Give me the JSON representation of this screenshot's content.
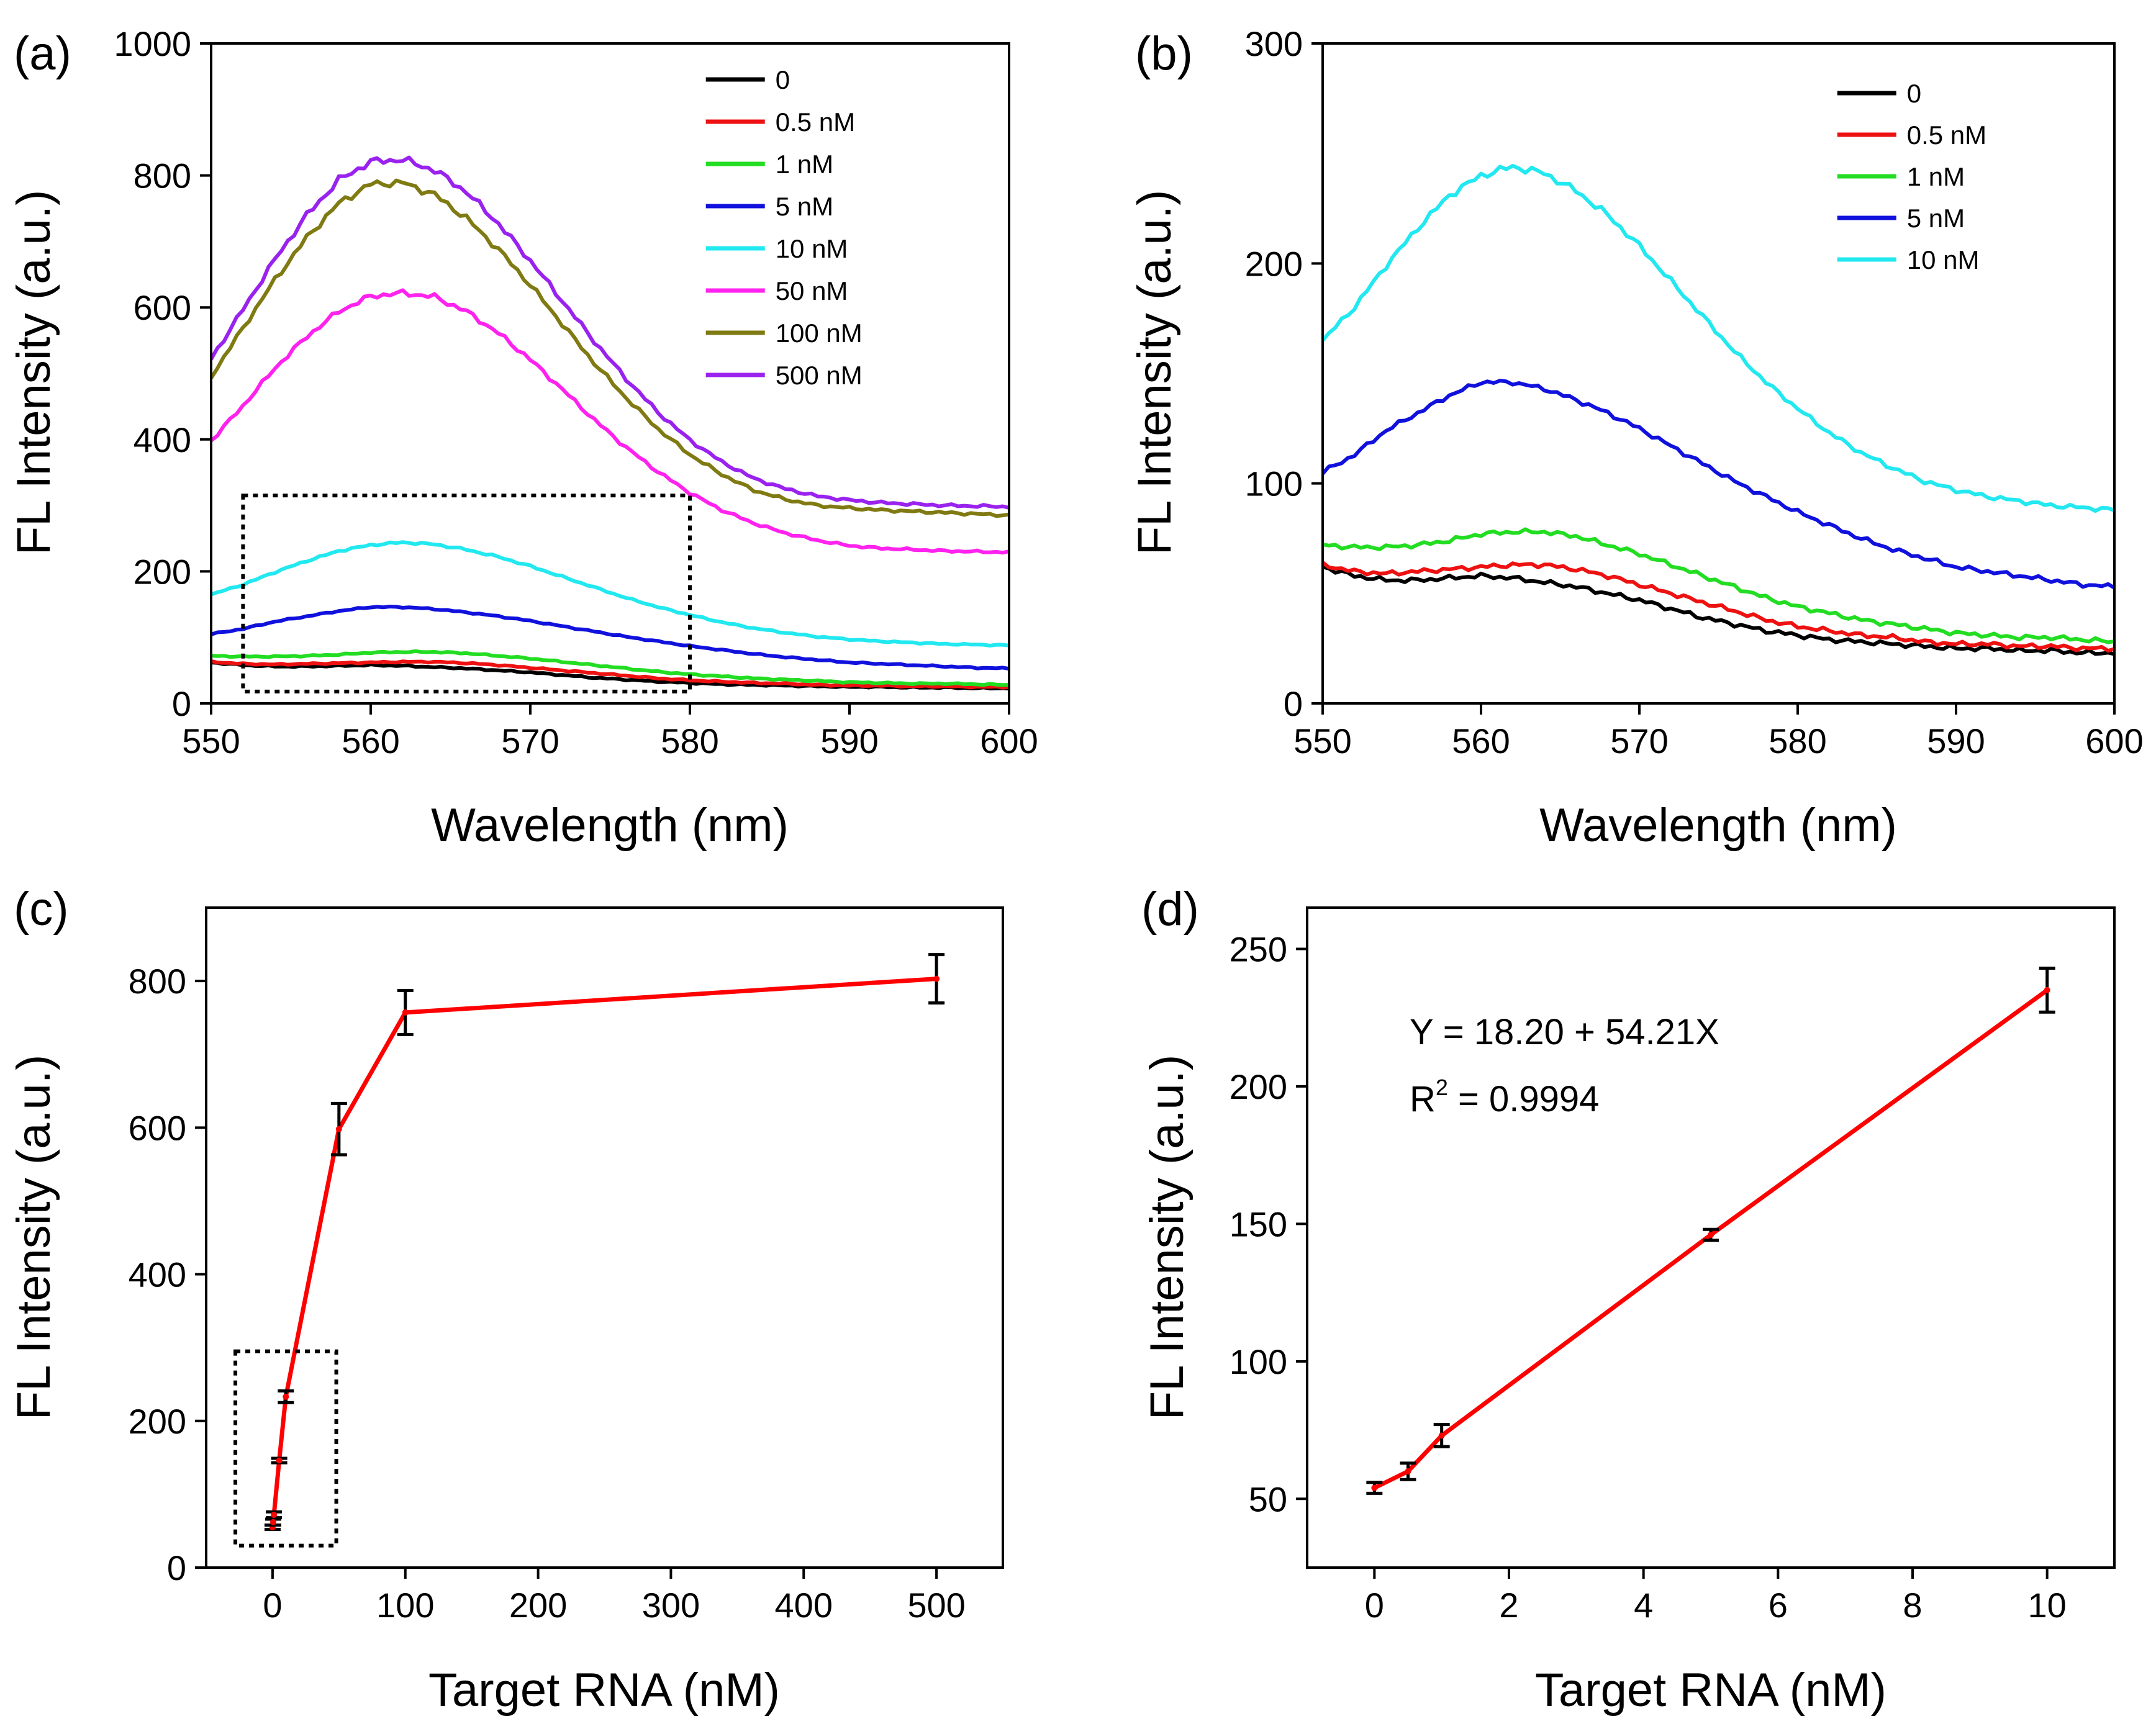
{
  "colors": {
    "0": "#000000",
    "0.5 nM": "#ee1111",
    "1 nM": "#22dd22",
    "5 nM": "#1111dd",
    "10 nM": "#22e8f0",
    "50 nM": "#ff22ee",
    "100 nM": "#7f7a12",
    "500 nM": "#9a22ee",
    "fit_line": "#ff0000"
  },
  "chart_data": [
    {
      "id": "a",
      "panel_label": "(a)",
      "type": "line",
      "xlabel": "Wavelength (nm)",
      "ylabel": "FL Intensity (a.u.)",
      "xlim": [
        550,
        600
      ],
      "ylim": [
        0,
        1000
      ],
      "xticks": [
        550,
        560,
        570,
        580,
        590,
        600
      ],
      "yticks": [
        0,
        200,
        400,
        600,
        800,
        1000
      ],
      "legend_position": "top-right",
      "zoom_box": {
        "x": [
          552,
          580
        ],
        "y": [
          18,
          315
        ]
      },
      "x": [
        550,
        552,
        554,
        556,
        558,
        560,
        562,
        564,
        566,
        568,
        570,
        572,
        574,
        576,
        578,
        580,
        582,
        584,
        586,
        588,
        590,
        592,
        594,
        596,
        598,
        600
      ],
      "series": [
        {
          "name": "0",
          "values": [
            62,
            58,
            56,
            56,
            57,
            58,
            57,
            55,
            53,
            50,
            47,
            43,
            39,
            36,
            33,
            31,
            29,
            28,
            27,
            26,
            25,
            25,
            24,
            24,
            23,
            23
          ]
        },
        {
          "name": "0.5 nM",
          "values": [
            63,
            60,
            59,
            60,
            61,
            62,
            63,
            63,
            61,
            58,
            54,
            50,
            46,
            42,
            38,
            35,
            33,
            31,
            30,
            28,
            27,
            27,
            26,
            26,
            25,
            25
          ]
        },
        {
          "name": "1 nM",
          "values": [
            72,
            71,
            71,
            72,
            74,
            77,
            78,
            78,
            76,
            72,
            68,
            63,
            58,
            53,
            48,
            44,
            41,
            38,
            36,
            34,
            32,
            31,
            30,
            30,
            29,
            28
          ]
        },
        {
          "name": "5 nM",
          "values": [
            105,
            113,
            124,
            132,
            140,
            146,
            146,
            143,
            138,
            132,
            125,
            117,
            109,
            101,
            94,
            87,
            81,
            75,
            70,
            66,
            62,
            60,
            58,
            56,
            54,
            53
          ]
        },
        {
          "name": "10 nM",
          "values": [
            165,
            180,
            199,
            216,
            231,
            240,
            244,
            241,
            233,
            222,
            208,
            192,
            176,
            160,
            146,
            134,
            123,
            114,
            107,
            101,
            97,
            94,
            92,
            90,
            89,
            88
          ]
        },
        {
          "name": "50 nM",
          "values": [
            398,
            451,
            508,
            556,
            594,
            617,
            622,
            616,
            594,
            561,
            521,
            476,
            430,
            388,
            351,
            319,
            293,
            273,
            258,
            247,
            239,
            235,
            233,
            231,
            230,
            229
          ]
        },
        {
          "name": "100 nM",
          "values": [
            495,
            569,
            642,
            706,
            758,
            787,
            789,
            771,
            735,
            688,
            634,
            575,
            516,
            463,
            416,
            377,
            347,
            323,
            309,
            300,
            296,
            293,
            291,
            289,
            287,
            285
          ]
        },
        {
          "name": "500 nM",
          "values": [
            522,
            597,
            673,
            740,
            793,
            821,
            824,
            808,
            775,
            727,
            671,
            610,
            549,
            492,
            441,
            399,
            366,
            341,
            325,
            314,
            308,
            304,
            302,
            300,
            299,
            298
          ]
        }
      ]
    },
    {
      "id": "b",
      "panel_label": "(b)",
      "type": "line",
      "xlabel": "Wavelength (nm)",
      "ylabel": "FL Intensity (a.u.)",
      "xlim": [
        550,
        600
      ],
      "ylim": [
        0,
        300
      ],
      "xticks": [
        550,
        560,
        570,
        580,
        590,
        600
      ],
      "yticks": [
        0,
        100,
        200,
        300
      ],
      "legend_position": "top-right",
      "x": [
        550,
        552,
        554,
        556,
        558,
        560,
        562,
        564,
        566,
        568,
        570,
        572,
        574,
        576,
        578,
        580,
        582,
        584,
        586,
        588,
        590,
        592,
        594,
        596,
        598,
        600
      ],
      "series": [
        {
          "name": "0",
          "values": [
            62,
            58,
            56,
            56,
            57,
            58,
            57,
            55,
            53,
            50,
            47,
            43,
            39,
            36,
            33,
            31,
            29,
            28,
            27,
            26,
            25,
            25,
            24,
            24,
            23,
            23
          ]
        },
        {
          "name": "0.5 nM",
          "values": [
            63,
            60,
            59,
            60,
            61,
            62,
            63,
            63,
            61,
            58,
            54,
            50,
            46,
            42,
            38,
            35,
            33,
            31,
            30,
            28,
            27,
            27,
            26,
            26,
            25,
            25
          ]
        },
        {
          "name": "1 nM",
          "values": [
            72,
            71,
            71,
            72,
            74,
            77,
            78,
            78,
            76,
            72,
            68,
            63,
            58,
            53,
            48,
            44,
            41,
            38,
            36,
            34,
            32,
            31,
            30,
            30,
            29,
            28
          ]
        },
        {
          "name": "5 nM",
          "values": [
            105,
            113,
            124,
            132,
            140,
            146,
            146,
            143,
            138,
            132,
            125,
            117,
            109,
            101,
            94,
            87,
            81,
            75,
            70,
            66,
            62,
            60,
            58,
            56,
            54,
            53
          ]
        },
        {
          "name": "10 nM",
          "values": [
            165,
            180,
            199,
            216,
            231,
            240,
            244,
            241,
            233,
            222,
            208,
            192,
            176,
            160,
            146,
            134,
            123,
            114,
            107,
            101,
            97,
            94,
            92,
            90,
            89,
            88
          ]
        }
      ]
    },
    {
      "id": "c",
      "panel_label": "(c)",
      "type": "line",
      "xlabel": "Target RNA (nM)",
      "ylabel": "FL Intensity (a.u.)",
      "xlim": [
        -50,
        550
      ],
      "ylim": [
        0,
        900
      ],
      "xticks": [
        0,
        100,
        200,
        300,
        400,
        500
      ],
      "yticks": [
        0,
        200,
        400,
        600,
        800
      ],
      "zoom_box": {
        "x": [
          -28,
          48
        ],
        "y": [
          30,
          295
        ]
      },
      "x": [
        0,
        0.5,
        1,
        5,
        10,
        50,
        100,
        500
      ],
      "series": [
        {
          "name": "FL intensity",
          "values": [
            55,
            62,
            72,
            146,
            233,
            598,
            757,
            803
          ],
          "errors": [
            3,
            4,
            4,
            3,
            8,
            35,
            30,
            33
          ]
        }
      ]
    },
    {
      "id": "d",
      "panel_label": "(d)",
      "type": "line",
      "xlabel": "Target RNA (nM)",
      "ylabel": "FL Intensity (a.u.)",
      "xlim": [
        -1,
        11
      ],
      "ylim": [
        25,
        265
      ],
      "xticks": [
        0,
        2,
        4,
        6,
        8,
        10
      ],
      "yticks": [
        50,
        100,
        150,
        200,
        250
      ],
      "annotation": {
        "equation": "Y = 18.20 + 54.21X",
        "r2_prefix": "R",
        "r2_sup": "2",
        "r2_value": " = 0.9994"
      },
      "x": [
        0,
        0.5,
        1,
        5,
        10
      ],
      "series": [
        {
          "name": "FL intensity",
          "values": [
            54,
            60,
            73,
            146,
            235
          ],
          "errors": [
            2,
            3,
            4,
            2,
            8
          ]
        }
      ]
    }
  ]
}
